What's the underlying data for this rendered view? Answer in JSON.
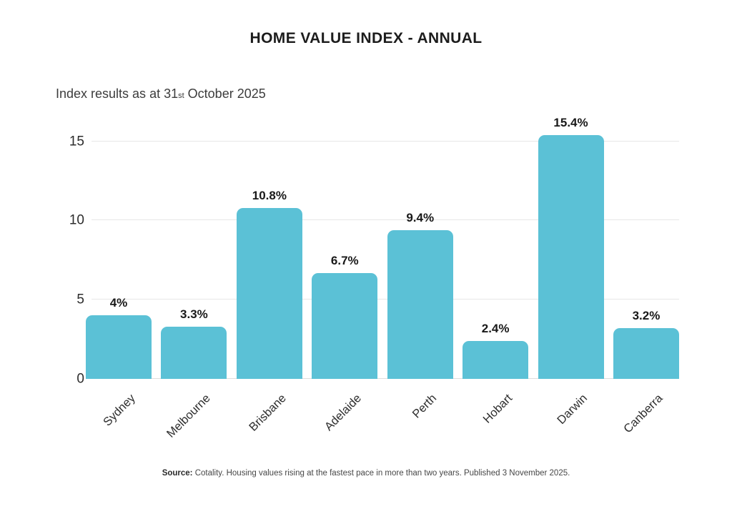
{
  "chart": {
    "title": "HOME VALUE INDEX - ANNUAL",
    "subtitle_prefix": "Index results as at 31",
    "subtitle_ordinal": "st",
    "subtitle_suffix": " October 2025"
  },
  "source": {
    "label": "Source:",
    "text": " Cotality. Housing values rising at the fastest pace in more than two years. Published 3 November 2025."
  },
  "chart_data": {
    "type": "bar",
    "title": "HOME VALUE INDEX - ANNUAL",
    "subtitle": "Index results as at 31st October 2025",
    "categories": [
      "Sydney",
      "Melbourne",
      "Brisbane",
      "Adelaide",
      "Perth",
      "Hobart",
      "Darwin",
      "Canberra"
    ],
    "values": [
      4,
      3.3,
      10.8,
      6.7,
      9.4,
      2.4,
      15.4,
      3.2
    ],
    "value_labels": [
      "4%",
      "3.3%",
      "10.8%",
      "6.7%",
      "9.4%",
      "2.4%",
      "15.4%",
      "3.2%"
    ],
    "unit": "%",
    "xlabel": "",
    "ylabel": "",
    "yticks": [
      0,
      5,
      10,
      15
    ],
    "ylim": [
      0,
      15.8
    ],
    "grid": true,
    "legend": false,
    "bar_color": "#5bc1d6",
    "x_label_rotation_deg": -45
  }
}
